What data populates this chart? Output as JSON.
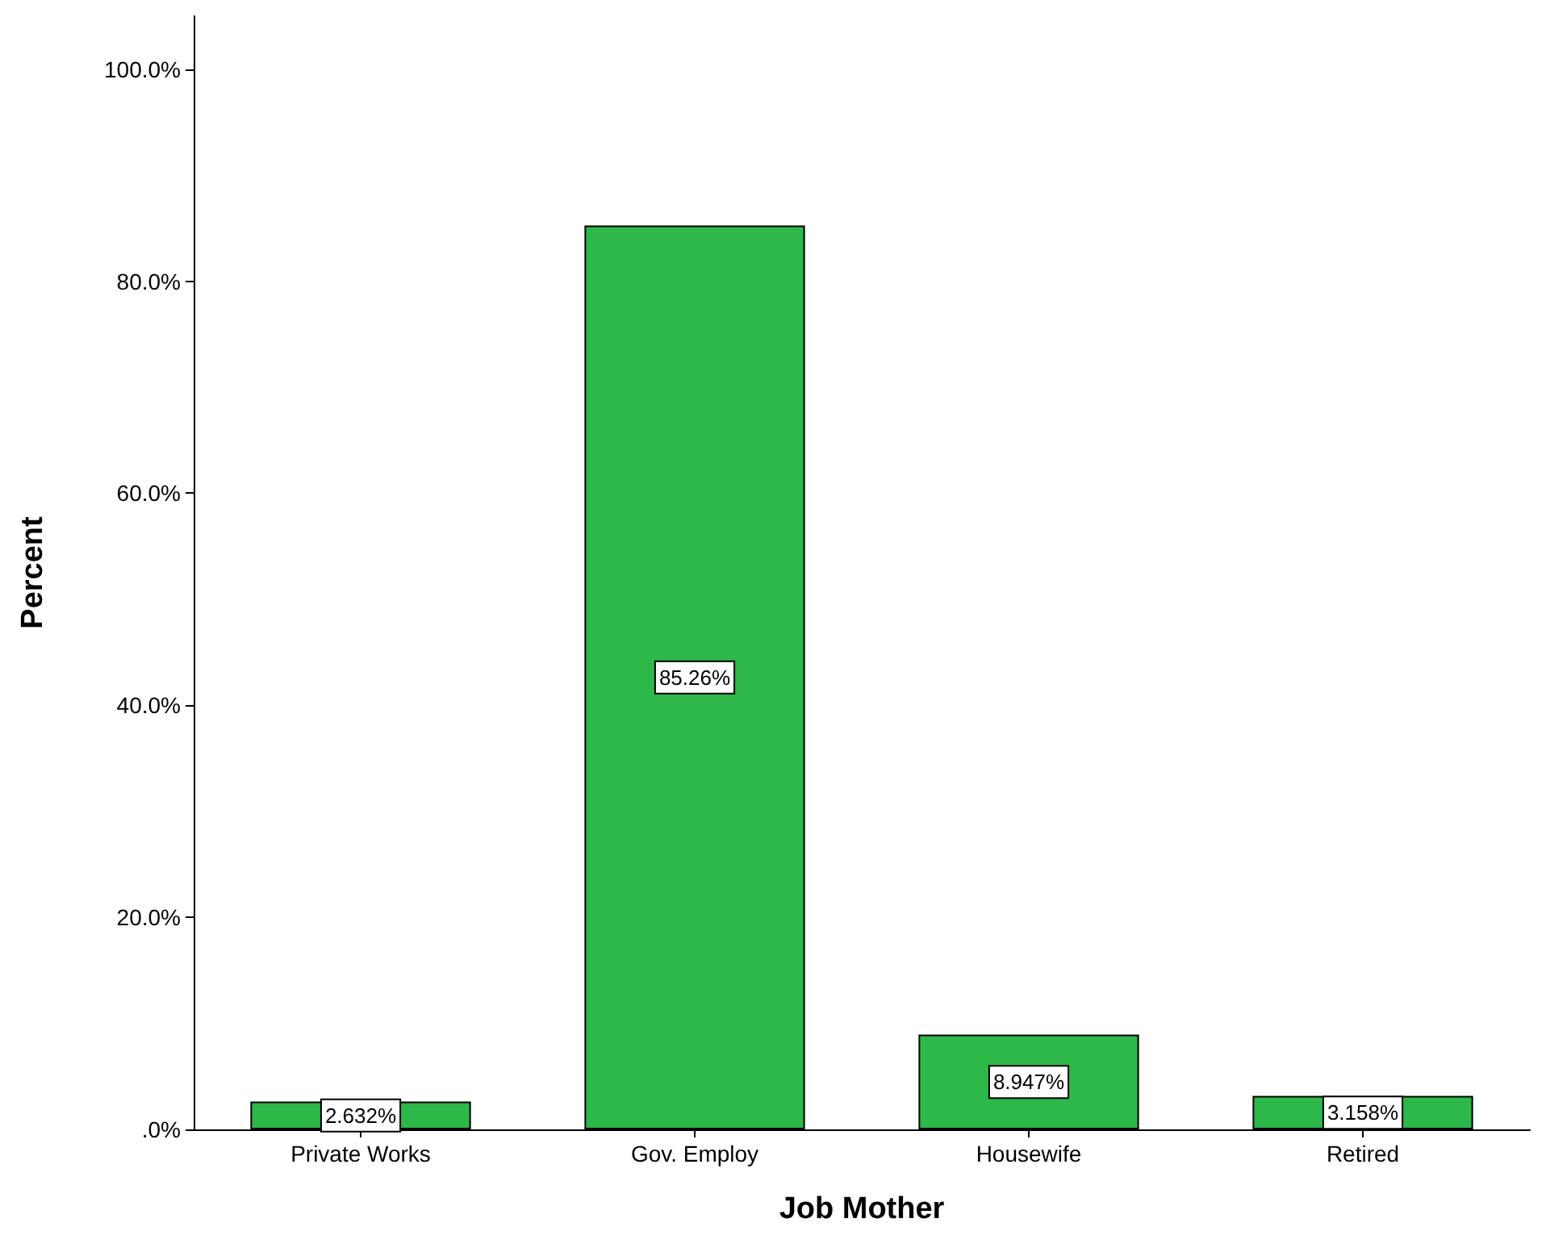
{
  "chart_data": {
    "type": "bar",
    "xlabel": "Job Mother",
    "ylabel": "Percent",
    "categories": [
      "Private Works",
      "Gov. Employ",
      "Housewife",
      "Retired"
    ],
    "values": [
      2.632,
      85.26,
      8.947,
      3.158
    ],
    "value_labels": [
      "2.632%",
      "85.26%",
      "8.947%",
      "3.158%"
    ],
    "color": "#2eb84a",
    "ylim": [
      0,
      105
    ],
    "yticks": [
      {
        "value": 0,
        "label": ".0%"
      },
      {
        "value": 20,
        "label": "20.0%"
      },
      {
        "value": 40,
        "label": "40.0%"
      },
      {
        "value": 60,
        "label": "60.0%"
      },
      {
        "value": 80,
        "label": "80.0%"
      },
      {
        "value": 100,
        "label": "100.0%"
      }
    ],
    "grid": false
  }
}
